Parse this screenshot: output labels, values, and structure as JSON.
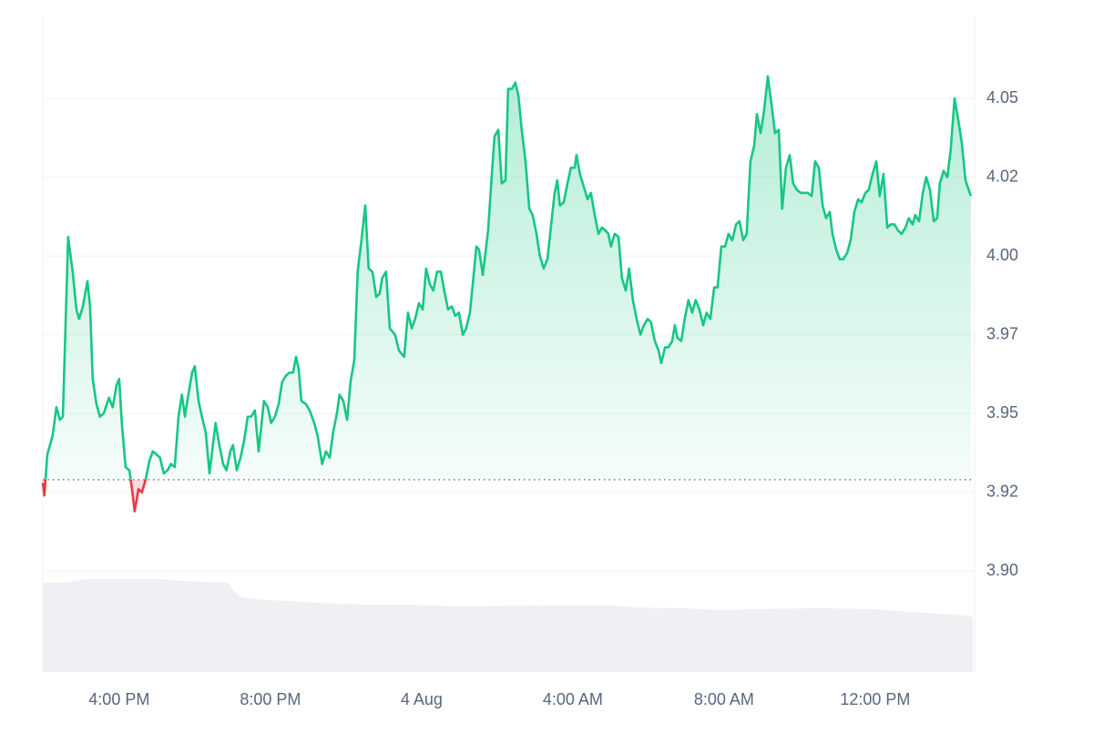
{
  "chart_data": {
    "type": "line",
    "color": "#16c784",
    "negative_color": "#ea3943",
    "grid": true,
    "baseline": 3.929,
    "xlim": [
      13.98,
      38.63
    ],
    "xticks": [
      {
        "value": 16,
        "label": "4:00 PM"
      },
      {
        "value": 20,
        "label": "8:00 PM"
      },
      {
        "value": 24,
        "label": "4 Aug"
      },
      {
        "value": 28,
        "label": "4:00 AM"
      },
      {
        "value": 32,
        "label": "8:00 AM"
      },
      {
        "value": 36,
        "label": "12:00 PM"
      }
    ],
    "ylim": [
      3.868,
      4.076
    ],
    "yticks": [
      {
        "value": 4.05,
        "label": "4.05"
      },
      {
        "value": 4.025,
        "label": "4.02"
      },
      {
        "value": 4.0,
        "label": "4.00"
      },
      {
        "value": 3.975,
        "label": "3.97"
      },
      {
        "value": 3.95,
        "label": "3.95"
      },
      {
        "value": 3.925,
        "label": "3.92"
      },
      {
        "value": 3.9,
        "label": "3.90"
      }
    ],
    "x": [
      13.98,
      14.02,
      14.1,
      14.24,
      14.34,
      14.43,
      14.51,
      14.65,
      14.77,
      14.87,
      14.94,
      15.04,
      15.16,
      15.23,
      15.3,
      15.4,
      15.49,
      15.59,
      15.73,
      15.83,
      15.93,
      16.0,
      16.07,
      16.17,
      16.27,
      16.34,
      16.41,
      16.51,
      16.6,
      16.7,
      16.8,
      16.89,
      16.99,
      17.08,
      17.18,
      17.28,
      17.37,
      17.47,
      17.57,
      17.66,
      17.74,
      17.83,
      17.93,
      18.0,
      18.1,
      18.19,
      18.29,
      18.39,
      18.48,
      18.55,
      18.65,
      18.75,
      18.84,
      18.94,
      19.01,
      19.11,
      19.21,
      19.3,
      19.4,
      19.49,
      19.59,
      19.69,
      19.83,
      19.93,
      20.02,
      20.12,
      20.22,
      20.31,
      20.41,
      20.51,
      20.6,
      20.68,
      20.75,
      20.82,
      20.94,
      21.04,
      21.16,
      21.25,
      21.37,
      21.47,
      21.57,
      21.66,
      21.76,
      21.83,
      21.93,
      22.03,
      22.12,
      22.22,
      22.31,
      22.41,
      22.51,
      22.6,
      22.7,
      22.8,
      22.89,
      22.96,
      23.06,
      23.16,
      23.3,
      23.4,
      23.54,
      23.64,
      23.74,
      23.83,
      23.93,
      24.03,
      24.12,
      24.22,
      24.31,
      24.41,
      24.51,
      24.6,
      24.7,
      24.8,
      24.89,
      24.99,
      25.09,
      25.18,
      25.28,
      25.37,
      25.45,
      25.52,
      25.62,
      25.71,
      25.76,
      25.86,
      25.93,
      26.03,
      26.12,
      26.22,
      26.29,
      26.39,
      26.48,
      26.56,
      26.65,
      26.75,
      26.85,
      26.94,
      27.04,
      27.13,
      27.23,
      27.33,
      27.42,
      27.52,
      27.59,
      27.66,
      27.76,
      27.86,
      27.95,
      28.05,
      28.1,
      28.19,
      28.29,
      28.39,
      28.48,
      28.58,
      28.68,
      28.77,
      28.87,
      28.94,
      29.01,
      29.11,
      29.21,
      29.3,
      29.4,
      29.49,
      29.59,
      29.69,
      29.79,
      29.88,
      29.98,
      30.07,
      30.17,
      30.27,
      30.34,
      30.44,
      30.53,
      30.63,
      30.7,
      30.77,
      30.87,
      30.96,
      31.06,
      31.16,
      31.25,
      31.35,
      31.45,
      31.54,
      31.64,
      31.74,
      31.83,
      31.93,
      32.03,
      32.12,
      32.22,
      32.32,
      32.41,
      32.51,
      32.6,
      32.7,
      32.8,
      32.87,
      32.97,
      33.06,
      33.16,
      33.26,
      33.35,
      33.45,
      33.54,
      33.64,
      33.74,
      33.83,
      33.93,
      34.03,
      34.12,
      34.22,
      34.32,
      34.41,
      34.51,
      34.61,
      34.7,
      34.8,
      34.87,
      34.97,
      35.06,
      35.16,
      35.26,
      35.35,
      35.45,
      35.55,
      35.64,
      35.74,
      35.83,
      35.93,
      36.03,
      36.12,
      36.22,
      36.32,
      36.41,
      36.51,
      36.61,
      36.7,
      36.8,
      36.89,
      36.99,
      37.06,
      37.16,
      37.26,
      37.35,
      37.45,
      37.55,
      37.64,
      37.71,
      37.81,
      37.91,
      38.0,
      38.1,
      38.2,
      38.29,
      38.39,
      38.53
    ],
    "values": [
      3.928,
      3.924,
      3.937,
      3.943,
      3.952,
      3.948,
      3.949,
      4.006,
      3.995,
      3.983,
      3.98,
      3.984,
      3.992,
      3.984,
      3.961,
      3.953,
      3.949,
      3.95,
      3.955,
      3.952,
      3.959,
      3.961,
      3.947,
      3.933,
      3.932,
      3.926,
      3.919,
      3.926,
      3.925,
      3.929,
      3.935,
      3.938,
      3.937,
      3.936,
      3.931,
      3.932,
      3.934,
      3.933,
      3.949,
      3.956,
      3.949,
      3.956,
      3.963,
      3.965,
      3.954,
      3.949,
      3.944,
      3.931,
      3.94,
      3.947,
      3.94,
      3.934,
      3.932,
      3.938,
      3.94,
      3.932,
      3.936,
      3.941,
      3.949,
      3.949,
      3.951,
      3.938,
      3.954,
      3.952,
      3.947,
      3.949,
      3.953,
      3.96,
      3.962,
      3.963,
      3.963,
      3.968,
      3.964,
      3.954,
      3.953,
      3.951,
      3.947,
      3.943,
      3.934,
      3.938,
      3.936,
      3.944,
      3.95,
      3.956,
      3.954,
      3.948,
      3.96,
      3.967,
      3.995,
      4.005,
      4.016,
      3.996,
      3.995,
      3.987,
      3.988,
      3.993,
      3.995,
      3.977,
      3.975,
      3.97,
      3.968,
      3.982,
      3.977,
      3.98,
      3.985,
      3.983,
      3.996,
      3.991,
      3.989,
      3.995,
      3.995,
      3.989,
      3.983,
      3.984,
      3.981,
      3.982,
      3.975,
      3.977,
      3.982,
      3.993,
      4.003,
      4.002,
      3.994,
      4.003,
      4.008,
      4.026,
      4.038,
      4.04,
      4.023,
      4.024,
      4.053,
      4.053,
      4.055,
      4.051,
      4.04,
      4.03,
      4.015,
      4.013,
      4.007,
      4.0,
      3.996,
      3.999,
      4.009,
      4.02,
      4.024,
      4.016,
      4.017,
      4.023,
      4.028,
      4.028,
      4.032,
      4.026,
      4.022,
      4.018,
      4.02,
      4.013,
      4.007,
      4.009,
      4.008,
      4.007,
      4.003,
      4.007,
      4.006,
      3.993,
      3.989,
      3.996,
      3.986,
      3.98,
      3.975,
      3.978,
      3.98,
      3.979,
      3.973,
      3.97,
      3.966,
      3.971,
      3.971,
      3.973,
      3.978,
      3.974,
      3.973,
      3.98,
      3.986,
      3.982,
      3.986,
      3.983,
      3.978,
      3.982,
      3.98,
      3.99,
      3.99,
      4.003,
      4.003,
      4.007,
      4.005,
      4.01,
      4.011,
      4.005,
      4.007,
      4.03,
      4.035,
      4.045,
      4.039,
      4.046,
      4.057,
      4.048,
      4.039,
      4.04,
      4.015,
      4.028,
      4.032,
      4.023,
      4.021,
      4.02,
      4.02,
      4.02,
      4.019,
      4.03,
      4.028,
      4.016,
      4.012,
      4.014,
      4.007,
      4.002,
      3.999,
      3.999,
      4.001,
      4.005,
      4.014,
      4.018,
      4.017,
      4.02,
      4.021,
      4.026,
      4.03,
      4.019,
      4.026,
      4.009,
      4.01,
      4.01,
      4.008,
      4.007,
      4.009,
      4.012,
      4.01,
      4.013,
      4.011,
      4.02,
      4.025,
      4.021,
      4.011,
      4.012,
      4.023,
      4.027,
      4.025,
      4.034,
      4.05,
      4.043,
      4.036,
      4.024,
      4.019
    ]
  }
}
